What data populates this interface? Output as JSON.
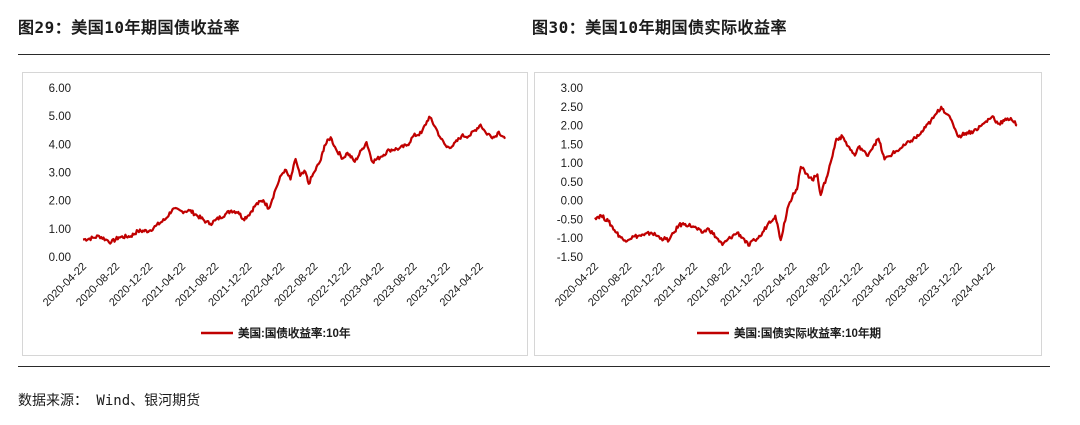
{
  "figures": {
    "left_title": "图29：美国10年期国债收益率",
    "right_title": "图30：美国10年期国债实际收益率"
  },
  "source": "数据来源： Wind、银河期货",
  "colors": {
    "line": "#c00000",
    "axis_text": "#1b1b1b",
    "rule": "#2a2a2a",
    "panel_border": "#d6d6d6"
  },
  "chart_data": [
    {
      "type": "line",
      "x_tick_labels": [
        "2020-04-22",
        "2020-08-22",
        "2020-12-22",
        "2021-04-22",
        "2021-08-22",
        "2021-12-22",
        "2022-04-22",
        "2022-08-22",
        "2022-12-22",
        "2023-04-22",
        "2023-08-22",
        "2023-12-22",
        "2024-04-22"
      ],
      "y_tick_labels": [
        "6.00",
        "5.00",
        "4.00",
        "3.00",
        "2.00",
        "1.00",
        "0.00"
      ],
      "ylim": [
        0,
        6
      ],
      "grid": false,
      "legend_position": "bottom-center",
      "series": [
        {
          "name": "美国:国债收益率:10年",
          "points": [
            [
              "2020-04-22",
              0.62
            ],
            [
              "2020-06-01",
              0.68
            ],
            [
              "2020-06-20",
              0.75
            ],
            [
              "2020-07-15",
              0.62
            ],
            [
              "2020-08-04",
              0.52
            ],
            [
              "2020-09-01",
              0.7
            ],
            [
              "2020-10-15",
              0.74
            ],
            [
              "2020-11-10",
              0.92
            ],
            [
              "2020-12-22",
              0.93
            ],
            [
              "2021-01-15",
              1.1
            ],
            [
              "2021-02-20",
              1.35
            ],
            [
              "2021-03-18",
              1.7
            ],
            [
              "2021-04-22",
              1.62
            ],
            [
              "2021-05-20",
              1.65
            ],
            [
              "2021-06-15",
              1.48
            ],
            [
              "2021-07-20",
              1.25
            ],
            [
              "2021-08-04",
              1.18
            ],
            [
              "2021-08-22",
              1.3
            ],
            [
              "2021-09-28",
              1.52
            ],
            [
              "2021-10-20",
              1.65
            ],
            [
              "2021-11-15",
              1.6
            ],
            [
              "2021-12-03",
              1.35
            ],
            [
              "2021-12-22",
              1.48
            ],
            [
              "2022-01-18",
              1.85
            ],
            [
              "2022-02-15",
              2.02
            ],
            [
              "2022-03-07",
              1.72
            ],
            [
              "2022-04-01",
              2.4
            ],
            [
              "2022-04-22",
              2.9
            ],
            [
              "2022-05-06",
              3.1
            ],
            [
              "2022-05-26",
              2.75
            ],
            [
              "2022-06-14",
              3.48
            ],
            [
              "2022-07-01",
              2.88
            ],
            [
              "2022-07-20",
              3.02
            ],
            [
              "2022-08-01",
              2.6
            ],
            [
              "2022-08-22",
              3.02
            ],
            [
              "2022-09-15",
              3.45
            ],
            [
              "2022-09-28",
              3.95
            ],
            [
              "2022-10-21",
              4.25
            ],
            [
              "2022-11-10",
              3.82
            ],
            [
              "2022-12-05",
              3.5
            ],
            [
              "2022-12-22",
              3.7
            ],
            [
              "2023-01-18",
              3.38
            ],
            [
              "2023-02-15",
              3.85
            ],
            [
              "2023-03-02",
              4.08
            ],
            [
              "2023-03-24",
              3.38
            ],
            [
              "2023-04-22",
              3.55
            ],
            [
              "2023-05-25",
              3.8
            ],
            [
              "2023-06-30",
              3.85
            ],
            [
              "2023-07-31",
              3.98
            ],
            [
              "2023-08-22",
              4.3
            ],
            [
              "2023-09-20",
              4.4
            ],
            [
              "2023-10-19",
              4.98
            ],
            [
              "2023-11-10",
              4.62
            ],
            [
              "2023-12-01",
              4.2
            ],
            [
              "2023-12-22",
              3.9
            ],
            [
              "2024-01-15",
              3.95
            ],
            [
              "2024-02-15",
              4.3
            ],
            [
              "2024-03-15",
              4.3
            ],
            [
              "2024-04-25",
              4.7
            ],
            [
              "2024-05-15",
              4.4
            ],
            [
              "2024-06-15",
              4.25
            ],
            [
              "2024-07-01",
              4.45
            ],
            [
              "2024-07-24",
              4.2
            ]
          ]
        }
      ]
    },
    {
      "type": "line",
      "x_tick_labels": [
        "2020-04-22",
        "2020-08-22",
        "2020-12-22",
        "2021-04-22",
        "2021-08-22",
        "2021-12-22",
        "2022-04-22",
        "2022-08-22",
        "2022-12-22",
        "2023-04-22",
        "2023-08-22",
        "2023-12-22",
        "2024-04-22"
      ],
      "y_tick_labels": [
        "3.00",
        "2.50",
        "2.00",
        "1.50",
        "1.00",
        "0.50",
        "0.00",
        "-0.50",
        "-1.00",
        "-1.50"
      ],
      "ylim": [
        -1.5,
        3
      ],
      "grid": false,
      "legend_position": "bottom-center",
      "series": [
        {
          "name": "美国:国债实际收益率:10年期",
          "points": [
            [
              "2020-04-22",
              -0.45
            ],
            [
              "2020-05-15",
              -0.4
            ],
            [
              "2020-06-10",
              -0.55
            ],
            [
              "2020-07-10",
              -0.85
            ],
            [
              "2020-08-06",
              -1.06
            ],
            [
              "2020-09-15",
              -0.95
            ],
            [
              "2020-10-20",
              -0.92
            ],
            [
              "2020-11-15",
              -0.85
            ],
            [
              "2020-12-22",
              -1.0
            ],
            [
              "2021-01-20",
              -1.05
            ],
            [
              "2021-02-25",
              -0.65
            ],
            [
              "2021-03-20",
              -0.62
            ],
            [
              "2021-04-22",
              -0.7
            ],
            [
              "2021-05-20",
              -0.85
            ],
            [
              "2021-06-15",
              -0.75
            ],
            [
              "2021-07-15",
              -1.0
            ],
            [
              "2021-08-04",
              -1.18
            ],
            [
              "2021-08-22",
              -1.05
            ],
            [
              "2021-09-28",
              -0.85
            ],
            [
              "2021-10-20",
              -1.0
            ],
            [
              "2021-11-08",
              -1.2
            ],
            [
              "2021-12-01",
              -1.05
            ],
            [
              "2021-12-22",
              -0.95
            ],
            [
              "2022-01-20",
              -0.6
            ],
            [
              "2022-02-15",
              -0.4
            ],
            [
              "2022-03-07",
              -1.05
            ],
            [
              "2022-04-01",
              -0.2
            ],
            [
              "2022-04-22",
              0.2
            ],
            [
              "2022-05-06",
              0.3
            ],
            [
              "2022-05-20",
              0.9
            ],
            [
              "2022-06-14",
              0.7
            ],
            [
              "2022-07-01",
              0.55
            ],
            [
              "2022-07-20",
              0.7
            ],
            [
              "2022-08-01",
              0.15
            ],
            [
              "2022-08-22",
              0.6
            ],
            [
              "2022-09-10",
              1.1
            ],
            [
              "2022-09-28",
              1.65
            ],
            [
              "2022-10-21",
              1.7
            ],
            [
              "2022-11-10",
              1.45
            ],
            [
              "2022-12-05",
              1.2
            ],
            [
              "2022-12-22",
              1.45
            ],
            [
              "2023-01-18",
              1.2
            ],
            [
              "2023-02-15",
              1.5
            ],
            [
              "2023-03-02",
              1.65
            ],
            [
              "2023-03-24",
              1.1
            ],
            [
              "2023-04-22",
              1.25
            ],
            [
              "2023-05-25",
              1.4
            ],
            [
              "2023-06-30",
              1.6
            ],
            [
              "2023-07-31",
              1.75
            ],
            [
              "2023-08-22",
              1.95
            ],
            [
              "2023-09-20",
              2.2
            ],
            [
              "2023-10-19",
              2.5
            ],
            [
              "2023-11-10",
              2.3
            ],
            [
              "2023-12-01",
              2.05
            ],
            [
              "2023-12-22",
              1.7
            ],
            [
              "2024-01-15",
              1.8
            ],
            [
              "2024-02-15",
              1.85
            ],
            [
              "2024-03-15",
              2.0
            ],
            [
              "2024-04-25",
              2.25
            ],
            [
              "2024-05-15",
              2.05
            ],
            [
              "2024-06-15",
              2.15
            ],
            [
              "2024-07-01",
              2.2
            ],
            [
              "2024-07-24",
              2.0
            ]
          ]
        }
      ]
    }
  ]
}
